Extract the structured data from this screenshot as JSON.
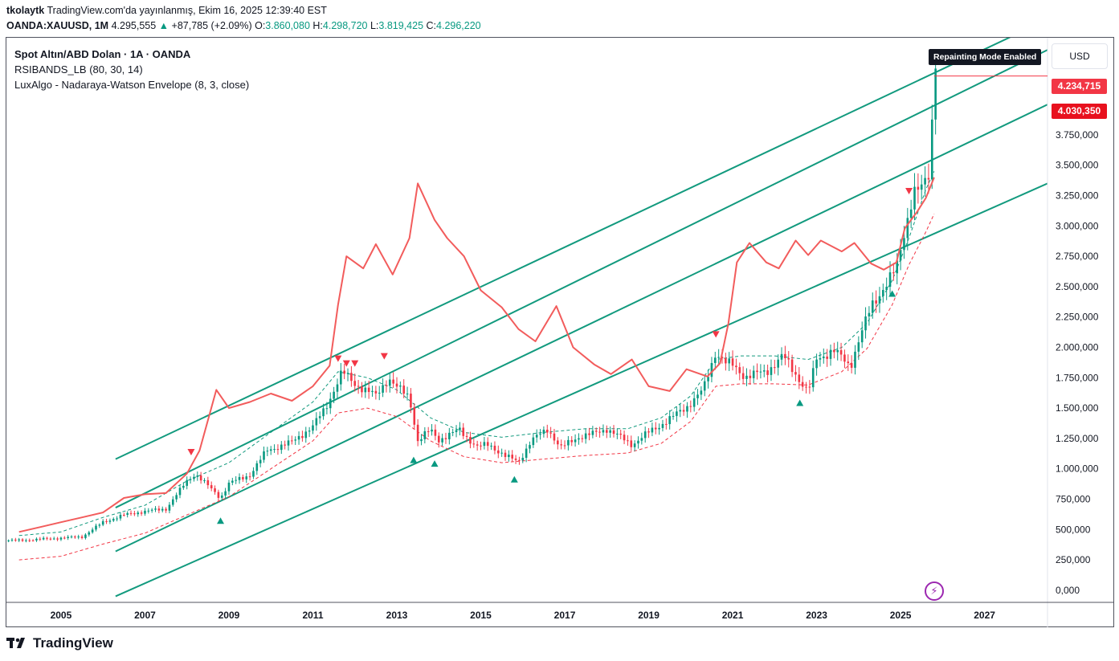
{
  "header": {
    "author": "tkolaytk",
    "published": "TradingView.com'da yayınlanmış, Ekim 16, 2025 12:39:40 EST",
    "symbol": "OANDA:XAUUSD, 1M",
    "last": "4.295,555",
    "change": "+87,785 (+2.09%)",
    "open_label": "O:",
    "open": "3.860,080",
    "high_label": "H:",
    "high": "4.298,720",
    "low_label": "L:",
    "low": "3.819,425",
    "close_label": "C:",
    "close": "4.296,220"
  },
  "legend": {
    "title": "Spot Altın/ABD Dolan · 1A · OANDA",
    "indicator1": "RSIBANDS_LB (80, 30, 14)",
    "indicator2": "LuxAlgo - Nadaraya-Watson Envelope (8, 3, close)"
  },
  "currency": "USD",
  "repainting_badge": "Repainting Mode Enabled",
  "price_tags": [
    {
      "value": "4.234,715",
      "color": "#f23645"
    },
    {
      "value": "4.030,350",
      "color": "#e8111e"
    }
  ],
  "brand": "TradingView",
  "colors": {
    "up": "#089981",
    "down": "#f23645",
    "rsi_line": "#f25c5c",
    "channel": "#129a7e",
    "envelope_up": "#129a7e",
    "envelope_down": "#f23645"
  },
  "chart_data": {
    "type": "line",
    "title": "Spot Altın/ABD Dolan · 1A · OANDA",
    "xlabel": "",
    "ylabel": "USD",
    "x_ticks": [
      "2005",
      "2007",
      "2009",
      "2011",
      "2013",
      "2015",
      "2017",
      "2019",
      "2021",
      "2023",
      "2025",
      "2027"
    ],
    "y_ticks": [
      "0,000",
      "250,000",
      "500,000",
      "750,000",
      "1.000,000",
      "1.250,000",
      "1.500,000",
      "1.750,000",
      "2.000,000",
      "2.250,000",
      "2.500,000",
      "2.750,000",
      "3.000,000",
      "3.250,000",
      "3.500,000",
      "3.750,000"
    ],
    "xlim": [
      2003.7,
      2028.5
    ],
    "ylim": [
      -100,
      4550
    ],
    "price_series": [
      [
        2004.0,
        410
      ],
      [
        2005.0,
        430
      ],
      [
        2005.5,
        440
      ],
      [
        2006.0,
        560
      ],
      [
        2006.5,
        620
      ],
      [
        2007.0,
        650
      ],
      [
        2007.5,
        670
      ],
      [
        2008.0,
        900
      ],
      [
        2008.2,
        960
      ],
      [
        2008.8,
        760
      ],
      [
        2009.0,
        880
      ],
      [
        2009.5,
        950
      ],
      [
        2009.9,
        1150
      ],
      [
        2010.5,
        1220
      ],
      [
        2011.0,
        1350
      ],
      [
        2011.3,
        1500
      ],
      [
        2011.7,
        1800
      ],
      [
        2012.0,
        1700
      ],
      [
        2012.5,
        1600
      ],
      [
        2012.8,
        1750
      ],
      [
        2013.0,
        1670
      ],
      [
        2013.3,
        1590
      ],
      [
        2013.5,
        1230
      ],
      [
        2013.8,
        1320
      ],
      [
        2014.0,
        1240
      ],
      [
        2014.5,
        1320
      ],
      [
        2014.9,
        1180
      ],
      [
        2015.2,
        1200
      ],
      [
        2015.6,
        1100
      ],
      [
        2015.9,
        1060
      ],
      [
        2016.2,
        1230
      ],
      [
        2016.6,
        1330
      ],
      [
        2016.9,
        1170
      ],
      [
        2017.3,
        1260
      ],
      [
        2017.7,
        1290
      ],
      [
        2018.0,
        1330
      ],
      [
        2018.6,
        1200
      ],
      [
        2019.0,
        1300
      ],
      [
        2019.5,
        1410
      ],
      [
        2019.9,
        1510
      ],
      [
        2020.3,
        1650
      ],
      [
        2020.6,
        1970
      ],
      [
        2020.8,
        1880
      ],
      [
        2021.0,
        1850
      ],
      [
        2021.3,
        1760
      ],
      [
        2021.8,
        1800
      ],
      [
        2022.2,
        1930
      ],
      [
        2022.6,
        1730
      ],
      [
        2022.8,
        1630
      ],
      [
        2023.0,
        1900
      ],
      [
        2023.4,
        1980
      ],
      [
        2023.8,
        1840
      ],
      [
        2024.0,
        2060
      ],
      [
        2024.3,
        2330
      ],
      [
        2024.6,
        2500
      ],
      [
        2024.9,
        2640
      ],
      [
        2025.0,
        2800
      ],
      [
        2025.3,
        3290
      ],
      [
        2025.5,
        3300
      ],
      [
        2025.6,
        3350
      ],
      [
        2025.7,
        3450
      ],
      [
        2025.75,
        3860
      ],
      [
        2025.8,
        4296
      ]
    ],
    "rsi_bands_line": [
      [
        2004.0,
        480
      ],
      [
        2004.5,
        520
      ],
      [
        2005.0,
        560
      ],
      [
        2005.5,
        600
      ],
      [
        2006.0,
        640
      ],
      [
        2006.5,
        760
      ],
      [
        2007.0,
        790
      ],
      [
        2007.5,
        800
      ],
      [
        2008.0,
        960
      ],
      [
        2008.3,
        1150
      ],
      [
        2008.7,
        1650
      ],
      [
        2009.0,
        1500
      ],
      [
        2009.5,
        1550
      ],
      [
        2010.0,
        1620
      ],
      [
        2010.5,
        1560
      ],
      [
        2011.0,
        1680
      ],
      [
        2011.4,
        1850
      ],
      [
        2011.6,
        2350
      ],
      [
        2011.8,
        2750
      ],
      [
        2012.2,
        2650
      ],
      [
        2012.5,
        2850
      ],
      [
        2012.9,
        2600
      ],
      [
        2013.3,
        2900
      ],
      [
        2013.5,
        3350
      ],
      [
        2013.9,
        3050
      ],
      [
        2014.2,
        2900
      ],
      [
        2014.6,
        2750
      ],
      [
        2015.0,
        2470
      ],
      [
        2015.5,
        2330
      ],
      [
        2015.9,
        2150
      ],
      [
        2016.3,
        2050
      ],
      [
        2016.8,
        2340
      ],
      [
        2017.2,
        2000
      ],
      [
        2017.7,
        1860
      ],
      [
        2018.1,
        1780
      ],
      [
        2018.6,
        1900
      ],
      [
        2019.0,
        1680
      ],
      [
        2019.5,
        1640
      ],
      [
        2019.9,
        1820
      ],
      [
        2020.4,
        1760
      ],
      [
        2020.7,
        1870
      ],
      [
        2020.9,
        2200
      ],
      [
        2021.1,
        2700
      ],
      [
        2021.4,
        2860
      ],
      [
        2021.8,
        2700
      ],
      [
        2022.1,
        2650
      ],
      [
        2022.5,
        2880
      ],
      [
        2022.8,
        2760
      ],
      [
        2023.1,
        2880
      ],
      [
        2023.6,
        2790
      ],
      [
        2023.9,
        2860
      ],
      [
        2024.3,
        2690
      ],
      [
        2024.6,
        2640
      ],
      [
        2024.9,
        2700
      ],
      [
        2025.1,
        2980
      ],
      [
        2025.4,
        3120
      ],
      [
        2025.6,
        3230
      ],
      [
        2025.8,
        3400
      ]
    ],
    "envelope_upper": [
      [
        2004.0,
        450
      ],
      [
        2005.0,
        480
      ],
      [
        2006.0,
        600
      ],
      [
        2007.0,
        700
      ],
      [
        2008.0,
        900
      ],
      [
        2009.0,
        1050
      ],
      [
        2010.0,
        1300
      ],
      [
        2011.0,
        1550
      ],
      [
        2011.6,
        1800
      ],
      [
        2012.3,
        1750
      ],
      [
        2013.0,
        1650
      ],
      [
        2013.8,
        1420
      ],
      [
        2014.6,
        1300
      ],
      [
        2015.5,
        1260
      ],
      [
        2016.5,
        1300
      ],
      [
        2017.5,
        1330
      ],
      [
        2018.5,
        1330
      ],
      [
        2019.3,
        1420
      ],
      [
        2020.0,
        1600
      ],
      [
        2020.6,
        1900
      ],
      [
        2021.2,
        1930
      ],
      [
        2022.0,
        1930
      ],
      [
        2022.8,
        1900
      ],
      [
        2023.6,
        2000
      ],
      [
        2024.2,
        2200
      ],
      [
        2024.8,
        2550
      ],
      [
        2025.2,
        2900
      ],
      [
        2025.6,
        3300
      ],
      [
        2025.8,
        3450
      ]
    ],
    "envelope_lower": [
      [
        2004.0,
        250
      ],
      [
        2005.0,
        280
      ],
      [
        2006.0,
        380
      ],
      [
        2007.0,
        470
      ],
      [
        2008.0,
        620
      ],
      [
        2009.0,
        770
      ],
      [
        2010.0,
        1000
      ],
      [
        2011.0,
        1230
      ],
      [
        2011.6,
        1460
      ],
      [
        2012.3,
        1500
      ],
      [
        2013.0,
        1430
      ],
      [
        2013.8,
        1230
      ],
      [
        2014.6,
        1100
      ],
      [
        2015.5,
        1050
      ],
      [
        2016.5,
        1080
      ],
      [
        2017.5,
        1110
      ],
      [
        2018.5,
        1130
      ],
      [
        2019.3,
        1210
      ],
      [
        2020.0,
        1390
      ],
      [
        2020.6,
        1680
      ],
      [
        2021.2,
        1700
      ],
      [
        2022.0,
        1700
      ],
      [
        2022.8,
        1690
      ],
      [
        2023.6,
        1800
      ],
      [
        2024.2,
        1990
      ],
      [
        2024.8,
        2350
      ],
      [
        2025.2,
        2680
      ],
      [
        2025.6,
        2950
      ],
      [
        2025.8,
        3100
      ]
    ],
    "channel_lines": [
      [
        [
          2006.3,
          1080
        ],
        [
          2028.5,
          4700
        ]
      ],
      [
        [
          2006.3,
          680
        ],
        [
          2028.5,
          4450
        ]
      ],
      [
        [
          2006.3,
          320
        ],
        [
          2028.5,
          4000
        ]
      ],
      [
        [
          2006.3,
          -50
        ],
        [
          2028.5,
          3350
        ]
      ]
    ],
    "signals_down": [
      [
        2008.1,
        1130
      ],
      [
        2011.6,
        1900
      ],
      [
        2011.8,
        1860
      ],
      [
        2012.0,
        1860
      ],
      [
        2012.7,
        1920
      ],
      [
        2020.6,
        2100
      ],
      [
        2025.2,
        3280
      ]
    ],
    "signals_up": [
      [
        2008.8,
        580
      ],
      [
        2013.4,
        1080
      ],
      [
        2013.9,
        1050
      ],
      [
        2015.8,
        920
      ],
      [
        2022.6,
        1550
      ],
      [
        2024.8,
        2450
      ]
    ]
  }
}
